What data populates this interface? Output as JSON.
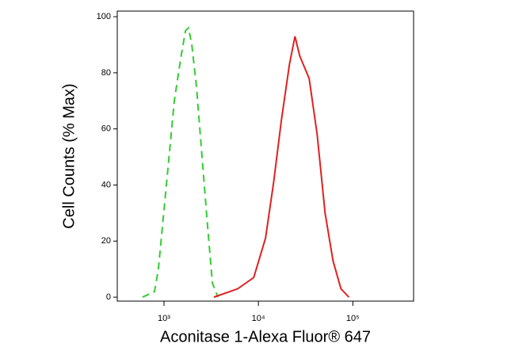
{
  "chart_data": {
    "type": "line",
    "xlabel": "Aconitase 1-Alexa Fluor® 647",
    "ylabel": "Cell Counts (% Max)",
    "xscale": "log",
    "xlim": [
      320,
      440000
    ],
    "ylim": [
      -1.4,
      102
    ],
    "xticks": [
      {
        "value": 1000,
        "label": "10³"
      },
      {
        "value": 10000,
        "label": "10⁴"
      },
      {
        "value": 100000,
        "label": "10⁵"
      }
    ],
    "yticks": [
      0,
      20,
      40,
      60,
      80,
      100
    ],
    "series": [
      {
        "color": "#33cc33",
        "dashed": true,
        "x": [
          593,
          793,
          873,
          1060,
          1285,
          1500,
          1690,
          1820,
          1970,
          2210,
          2530,
          2900,
          3260,
          3720
        ],
        "values": [
          0,
          2,
          10,
          40,
          70,
          85,
          95,
          96,
          90,
          75,
          50,
          25,
          5,
          0
        ]
      },
      {
        "color": "#e02020",
        "dashed": false,
        "x": [
          3380,
          6050,
          8910,
          11900,
          14500,
          17500,
          21300,
          24400,
          27400,
          34500,
          41900,
          50800,
          61700,
          74800,
          90800
        ],
        "values": [
          0,
          3,
          7,
          21,
          41,
          63,
          83,
          93,
          86,
          78,
          58,
          30,
          13,
          3,
          0
        ]
      }
    ]
  }
}
